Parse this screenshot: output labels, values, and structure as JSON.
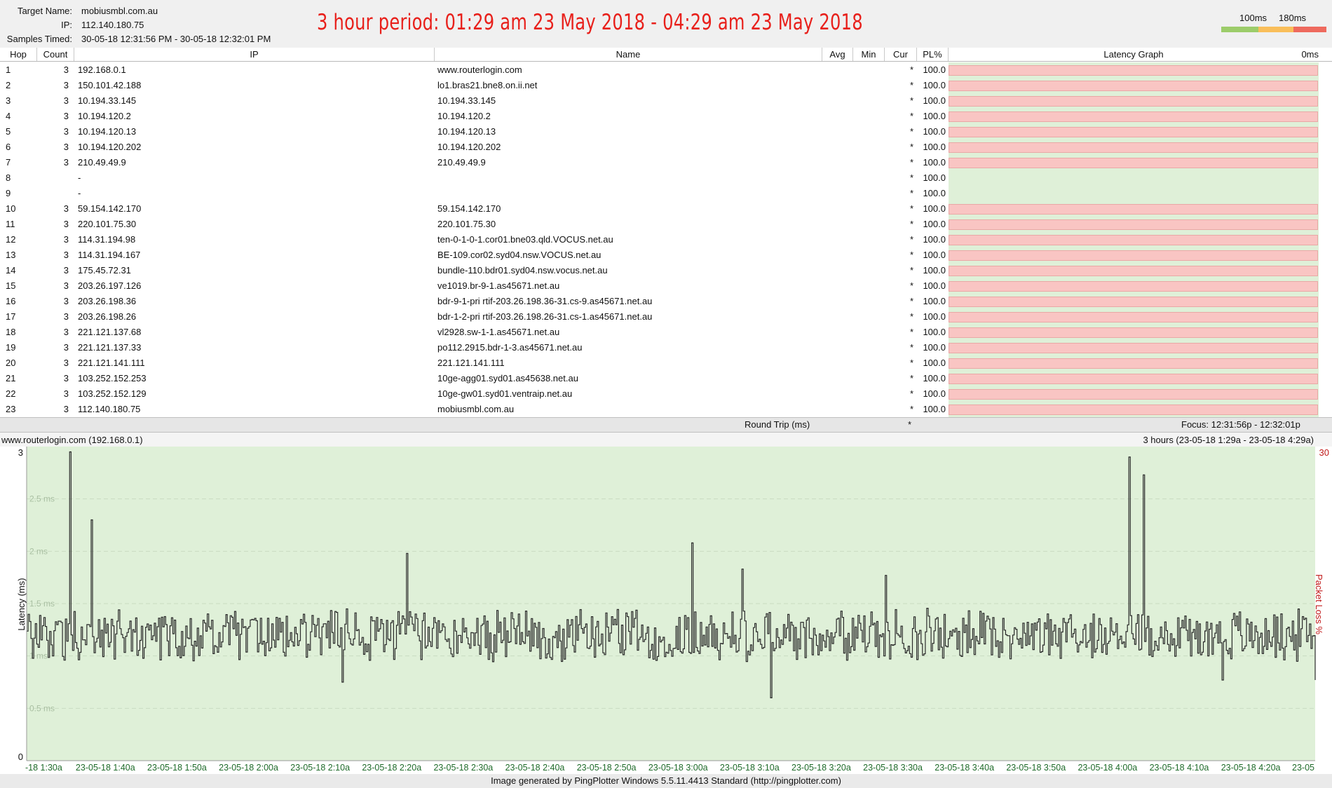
{
  "header": {
    "target_label": "Target Name:",
    "target_value": "mobiusmbl.com.au",
    "ip_label": "IP:",
    "ip_value": "112.140.180.75",
    "samples_label": "Samples Timed:",
    "samples_value": "30-05-18 12:31:56 PM - 30-05-18 12:32:01 PM",
    "title": "3 hour period:  01:29 am 23 May 2018 - 04:29 am 23 May 2018",
    "scale_100": "100ms",
    "scale_180": "180ms",
    "scale_colors": [
      "#9ccc6a",
      "#f9be5a",
      "#ee6a5e"
    ]
  },
  "table": {
    "columns": {
      "hop": "Hop",
      "count": "Count",
      "ip": "IP",
      "name": "Name",
      "avg": "Avg",
      "min": "Min",
      "cur": "Cur",
      "pl": "PL%",
      "graph": "Latency Graph",
      "graph_right": "0ms"
    },
    "rows": [
      {
        "hop": "1",
        "count": "3",
        "ip": "192.168.0.1",
        "name": "www.routerlogin.com",
        "cur": "*",
        "pl": "100.0",
        "loss": true
      },
      {
        "hop": "2",
        "count": "3",
        "ip": "150.101.42.188",
        "name": "lo1.bras21.bne8.on.ii.net",
        "cur": "*",
        "pl": "100.0",
        "loss": true
      },
      {
        "hop": "3",
        "count": "3",
        "ip": "10.194.33.145",
        "name": "10.194.33.145",
        "cur": "*",
        "pl": "100.0",
        "loss": true
      },
      {
        "hop": "4",
        "count": "3",
        "ip": "10.194.120.2",
        "name": "10.194.120.2",
        "cur": "*",
        "pl": "100.0",
        "loss": true
      },
      {
        "hop": "5",
        "count": "3",
        "ip": "10.194.120.13",
        "name": "10.194.120.13",
        "cur": "*",
        "pl": "100.0",
        "loss": true
      },
      {
        "hop": "6",
        "count": "3",
        "ip": "10.194.120.202",
        "name": "10.194.120.202",
        "cur": "*",
        "pl": "100.0",
        "loss": true
      },
      {
        "hop": "7",
        "count": "3",
        "ip": "210.49.49.9",
        "name": "210.49.49.9",
        "cur": "*",
        "pl": "100.0",
        "loss": true
      },
      {
        "hop": "8",
        "count": "",
        "ip": "-",
        "name": "",
        "cur": "*",
        "pl": "100.0",
        "loss": false
      },
      {
        "hop": "9",
        "count": "",
        "ip": "-",
        "name": "",
        "cur": "*",
        "pl": "100.0",
        "loss": false
      },
      {
        "hop": "10",
        "count": "3",
        "ip": "59.154.142.170",
        "name": "59.154.142.170",
        "cur": "*",
        "pl": "100.0",
        "loss": true
      },
      {
        "hop": "11",
        "count": "3",
        "ip": "220.101.75.30",
        "name": "220.101.75.30",
        "cur": "*",
        "pl": "100.0",
        "loss": true
      },
      {
        "hop": "12",
        "count": "3",
        "ip": "114.31.194.98",
        "name": "ten-0-1-0-1.cor01.bne03.qld.VOCUS.net.au",
        "cur": "*",
        "pl": "100.0",
        "loss": true
      },
      {
        "hop": "13",
        "count": "3",
        "ip": "114.31.194.167",
        "name": "BE-109.cor02.syd04.nsw.VOCUS.net.au",
        "cur": "*",
        "pl": "100.0",
        "loss": true
      },
      {
        "hop": "14",
        "count": "3",
        "ip": "175.45.72.31",
        "name": "bundle-110.bdr01.syd04.nsw.vocus.net.au",
        "cur": "*",
        "pl": "100.0",
        "loss": true
      },
      {
        "hop": "15",
        "count": "3",
        "ip": "203.26.197.126",
        "name": "ve1019.br-9-1.as45671.net.au",
        "cur": "*",
        "pl": "100.0",
        "loss": true
      },
      {
        "hop": "16",
        "count": "3",
        "ip": "203.26.198.36",
        "name": "bdr-9-1-pri rtif-203.26.198.36-31.cs-9.as45671.net.au",
        "cur": "*",
        "pl": "100.0",
        "loss": true
      },
      {
        "hop": "17",
        "count": "3",
        "ip": "203.26.198.26",
        "name": "bdr-1-2-pri rtif-203.26.198.26-31.cs-1.as45671.net.au",
        "cur": "*",
        "pl": "100.0",
        "loss": true
      },
      {
        "hop": "18",
        "count": "3",
        "ip": "221.121.137.68",
        "name": "vl2928.sw-1-1.as45671.net.au",
        "cur": "*",
        "pl": "100.0",
        "loss": true
      },
      {
        "hop": "19",
        "count": "3",
        "ip": "221.121.137.33",
        "name": "po112.2915.bdr-1-3.as45671.net.au",
        "cur": "*",
        "pl": "100.0",
        "loss": true
      },
      {
        "hop": "20",
        "count": "3",
        "ip": "221.121.141.111",
        "name": "221.121.141.111",
        "cur": "*",
        "pl": "100.0",
        "loss": true
      },
      {
        "hop": "21",
        "count": "3",
        "ip": "103.252.152.253",
        "name": "10ge-agg01.syd01.as45638.net.au",
        "cur": "*",
        "pl": "100.0",
        "loss": true
      },
      {
        "hop": "22",
        "count": "3",
        "ip": "103.252.152.129",
        "name": "10ge-gw01.syd01.ventraip.net.au",
        "cur": "*",
        "pl": "100.0",
        "loss": true
      },
      {
        "hop": "23",
        "count": "3",
        "ip": "112.140.180.75",
        "name": "mobiusmbl.com.au",
        "cur": "*",
        "pl": "100.0",
        "loss": true
      }
    ]
  },
  "round_trip": {
    "label": "Round Trip (ms)",
    "cur": "*",
    "focus": "Focus: 12:31:56p - 12:32:01p"
  },
  "chart_header": {
    "left": "www.routerlogin.com (192.168.0.1)",
    "right": "3 hours (23-05-18 1:29a - 23-05-18 4:29a)"
  },
  "chart_data": {
    "type": "line",
    "ylabel": "Latency (ms)",
    "y2label": "Packet Loss %",
    "ylim": [
      0,
      3
    ],
    "y_tick_labels": [
      "3",
      "0"
    ],
    "y2_tick_label": "30",
    "grid_labels": [
      "2.5 ms",
      "2 ms",
      "1.5 ms",
      "1 ms",
      "0.5 ms"
    ],
    "grid_values": [
      2.5,
      2.0,
      1.5,
      1.0,
      0.5
    ],
    "grid": true,
    "colors": {
      "background": "#dff0d8",
      "line": "#2a2a2a",
      "tick_text": "#1f6b2a",
      "y2": "#c01818"
    },
    "x_tick_labels": [
      "-18 1:30a",
      "23-05-18 1:40a",
      "23-05-18 1:50a",
      "23-05-18 2:00a",
      "23-05-18 2:10a",
      "23-05-18 2:20a",
      "23-05-18 2:30a",
      "23-05-18 2:40a",
      "23-05-18 2:50a",
      "23-05-18 3:00a",
      "23-05-18 3:10a",
      "23-05-18 3:20a",
      "23-05-18 3:30a",
      "23-05-18 3:40a",
      "23-05-18 3:50a",
      "23-05-18 4:00a",
      "23-05-18 4:10a",
      "23-05-18 4:20a",
      "23-05"
    ],
    "series": [
      {
        "baseline_ms": 1.2,
        "spikes": [
          {
            "time": "1:35a",
            "ms": 2.95
          },
          {
            "time": "1:38a",
            "ms": 2.3
          },
          {
            "time": "2:22a",
            "ms": 1.98
          },
          {
            "time": "3:02a",
            "ms": 2.08
          },
          {
            "time": "3:09a",
            "ms": 1.83
          },
          {
            "time": "3:29a",
            "ms": 1.77
          },
          {
            "time": "4:03a",
            "ms": 2.9
          },
          {
            "time": "4:05a",
            "ms": 2.73
          },
          {
            "time": "2:13a",
            "ms": 0.75
          },
          {
            "time": "3:13a",
            "ms": 0.6
          },
          {
            "time": "4:16a",
            "ms": 0.77
          },
          {
            "time": "4:29a",
            "ms": 0.77
          }
        ]
      }
    ]
  },
  "footer": "Image generated by PingPlotter Windows 5.5.11.4413 Standard (http://pingplotter.com)"
}
